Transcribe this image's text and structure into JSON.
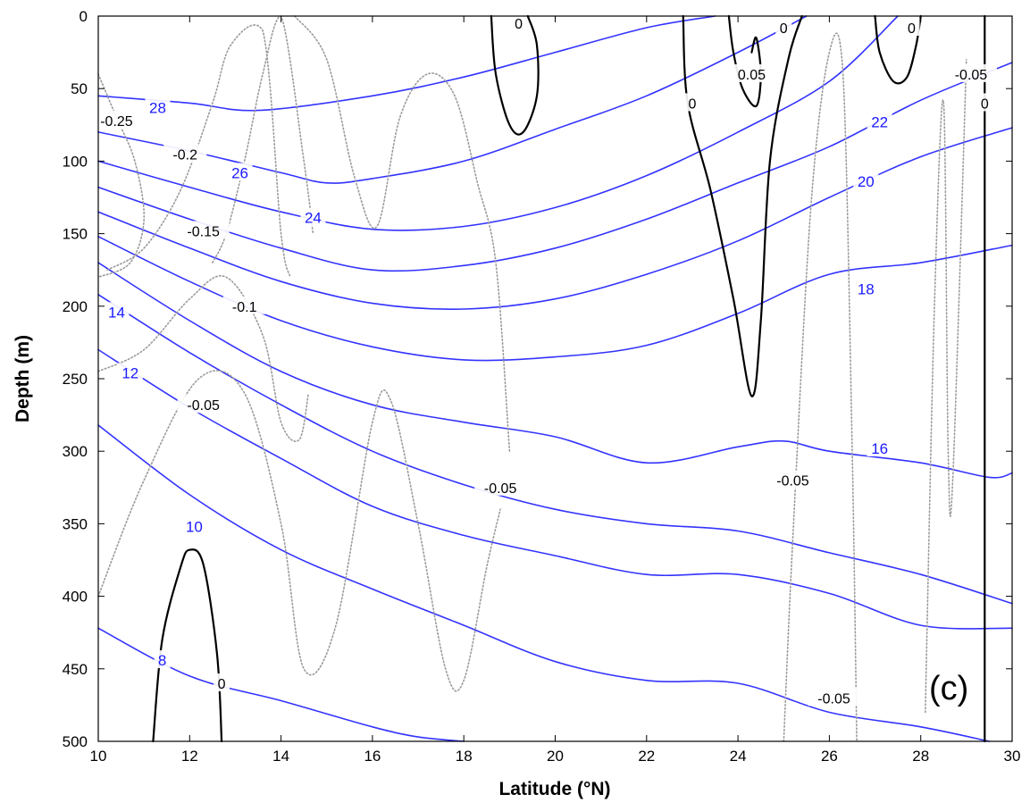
{
  "chart_data": {
    "type": "line",
    "subtype": "contour-section",
    "panel_label": "(c)",
    "xlabel": "Latitude (°N)",
    "ylabel": "Depth (m)",
    "xlim": [
      10,
      30
    ],
    "ylim": [
      500,
      0
    ],
    "y_inverted": true,
    "x_ticks": [
      10,
      12,
      14,
      16,
      18,
      20,
      22,
      24,
      26,
      28,
      30
    ],
    "y_ticks": [
      0,
      50,
      100,
      150,
      200,
      250,
      300,
      350,
      400,
      450,
      500
    ],
    "grid": false,
    "colors": {
      "temperature": "#3333ff",
      "zero_contour": "#000000",
      "negative_contour": "#9a9a9a"
    },
    "series": [
      {
        "name": "28",
        "group": "temperature",
        "x": [
          10,
          12,
          13.5,
          16,
          18,
          20,
          22,
          23.5
        ],
        "y": [
          55,
          60,
          65,
          55,
          42,
          25,
          8,
          0
        ]
      },
      {
        "name": "26",
        "group": "temperature",
        "x": [
          10,
          12,
          14,
          15,
          16,
          18,
          20,
          22,
          24,
          25.5
        ],
        "y": [
          80,
          93,
          108,
          115,
          112,
          100,
          78,
          55,
          25,
          0
        ]
      },
      {
        "name": "24",
        "group": "temperature",
        "x": [
          10,
          12,
          14,
          16,
          18,
          20,
          22,
          24,
          26,
          27.5
        ],
        "y": [
          100,
          118,
          135,
          147,
          145,
          132,
          110,
          80,
          45,
          0
        ]
      },
      {
        "name": "22",
        "group": "temperature",
        "x": [
          10,
          12,
          14,
          16,
          18,
          20,
          22,
          24,
          26,
          28,
          30
        ],
        "y": [
          118,
          140,
          160,
          175,
          172,
          160,
          140,
          115,
          90,
          58,
          32
        ]
      },
      {
        "name": "20",
        "group": "temperature",
        "x": [
          10,
          12,
          14,
          16,
          18,
          20,
          22,
          24,
          26,
          28,
          30
        ],
        "y": [
          135,
          160,
          183,
          198,
          202,
          195,
          178,
          155,
          125,
          97,
          77
        ]
      },
      {
        "name": "18",
        "group": "temperature",
        "x": [
          10,
          12,
          14,
          16,
          18,
          20,
          22,
          24,
          26,
          28,
          30
        ],
        "y": [
          152,
          183,
          210,
          228,
          237,
          235,
          227,
          205,
          178,
          170,
          158
        ]
      },
      {
        "name": "16",
        "group": "temperature",
        "x": [
          10,
          12,
          14,
          16,
          18,
          20,
          22,
          24,
          25,
          26,
          28,
          29.5,
          30
        ],
        "y": [
          170,
          210,
          245,
          268,
          280,
          290,
          308,
          297,
          293,
          300,
          308,
          318,
          315
        ]
      },
      {
        "name": "14",
        "group": "temperature",
        "x": [
          10,
          12,
          14,
          16,
          18,
          20,
          22,
          24,
          26,
          28,
          30
        ],
        "y": [
          192,
          232,
          268,
          300,
          323,
          340,
          350,
          355,
          370,
          385,
          405
        ]
      },
      {
        "name": "12",
        "group": "temperature",
        "x": [
          10,
          12,
          14,
          16,
          18,
          20,
          22,
          24,
          26,
          28,
          30
        ],
        "y": [
          230,
          270,
          305,
          338,
          358,
          372,
          385,
          385,
          398,
          420,
          422
        ]
      },
      {
        "name": "10",
        "group": "temperature",
        "x": [
          10,
          12,
          14,
          16,
          18,
          20,
          22,
          24,
          26,
          28,
          29.5
        ],
        "y": [
          282,
          330,
          368,
          395,
          420,
          445,
          458,
          460,
          480,
          490,
          500
        ]
      },
      {
        "name": "8",
        "group": "temperature",
        "x": [
          10,
          12,
          14,
          16,
          17,
          18
        ],
        "y": [
          422,
          455,
          472,
          490,
          497,
          500
        ]
      },
      {
        "name": "0",
        "group": "zero_contour",
        "x": [
          18.6,
          18.7,
          19.0,
          19.3,
          19.6,
          19.6,
          19.4
        ],
        "y": [
          0,
          40,
          75,
          80,
          55,
          20,
          0
        ]
      },
      {
        "name": "0",
        "group": "zero_contour",
        "x": [
          22.8,
          22.9,
          23.4,
          23.9,
          24.3,
          24.5,
          24.7,
          25.1,
          25.4
        ],
        "y": [
          0,
          60,
          120,
          195,
          262,
          210,
          100,
          30,
          0
        ]
      },
      {
        "name": "0.05",
        "group": "zero_contour",
        "x": [
          23.8,
          23.9,
          24.1,
          24.4,
          24.5,
          24.4,
          24.3
        ],
        "y": [
          0,
          25,
          50,
          62,
          40,
          15,
          25
        ]
      },
      {
        "name": "0",
        "group": "zero_contour",
        "x": [
          27.0,
          27.1,
          27.4,
          27.7,
          27.9,
          28.0
        ],
        "y": [
          0,
          25,
          45,
          42,
          20,
          0
        ]
      },
      {
        "name": "0",
        "group": "zero_contour",
        "x": [
          29.4,
          29.4,
          29.4
        ],
        "y": [
          0,
          250,
          500
        ]
      },
      {
        "name": "0",
        "group": "zero_contour",
        "x": [
          11.2,
          11.4,
          11.8,
          12.0,
          12.3,
          12.6,
          12.7
        ],
        "y": [
          500,
          430,
          380,
          368,
          378,
          440,
          500
        ]
      },
      {
        "name": "-0.25",
        "group": "negative_contour",
        "x": [
          10,
          10.4,
          10.8,
          11.0,
          10.7,
          10.0
        ],
        "y": [
          40,
          70,
          100,
          140,
          170,
          180
        ]
      },
      {
        "name": "-0.2",
        "group": "negative_contour",
        "x": [
          10.2,
          11.0,
          11.8,
          12.5,
          12.9,
          13.6,
          14.0,
          14.2
        ],
        "y": [
          175,
          160,
          120,
          60,
          20,
          10,
          150,
          180
        ]
      },
      {
        "name": "-0.15",
        "group": "negative_contour",
        "x": [
          12.5,
          12.8,
          13.2,
          13.6,
          14.0,
          14.5,
          14.7
        ],
        "y": [
          170,
          150,
          100,
          40,
          0,
          100,
          150
        ]
      },
      {
        "name": "-0.1",
        "group": "negative_contour",
        "x": [
          10,
          11.0,
          12.0,
          12.8,
          13.6,
          14.0,
          14.4,
          14.6
        ],
        "y": [
          245,
          230,
          195,
          180,
          220,
          280,
          292,
          260
        ]
      },
      {
        "name": "-0.05",
        "group": "negative_contour",
        "x": [
          10,
          11.0,
          12.2,
          13.2,
          14.0,
          14.5,
          15.2,
          16.0,
          16.4,
          17.0,
          17.6,
          18.0,
          18.5,
          18.8
        ],
        "y": [
          400,
          320,
          250,
          260,
          350,
          450,
          420,
          280,
          265,
          350,
          450,
          458,
          380,
          340
        ]
      },
      {
        "name": "-0.05",
        "group": "negative_contour",
        "x": [
          14.3,
          15.0,
          15.6,
          16.1,
          16.6,
          17.2,
          17.8,
          18.3,
          18.7,
          19.0
        ],
        "y": [
          0,
          30,
          110,
          145,
          70,
          40,
          55,
          115,
          170,
          300
        ]
      },
      {
        "name": "-0.05",
        "group": "negative_contour",
        "x": [
          25.0,
          25.2,
          25.6,
          26.0,
          26.3,
          26.5,
          26.6
        ],
        "y": [
          500,
          360,
          130,
          25,
          40,
          300,
          500
        ]
      },
      {
        "name": "-0.05",
        "group": "negative_contour",
        "x": [
          28.1,
          28.3,
          28.5,
          28.6,
          28.7,
          29.0
        ],
        "y": [
          480,
          200,
          60,
          300,
          320,
          30
        ]
      }
    ],
    "annotations": [
      {
        "text": "28",
        "x": 11.3,
        "y": 63,
        "group": "temperature"
      },
      {
        "text": "26",
        "x": 13.1,
        "y": 108,
        "group": "temperature"
      },
      {
        "text": "24",
        "x": 14.7,
        "y": 139,
        "group": "temperature"
      },
      {
        "text": "22",
        "x": 27.1,
        "y": 73,
        "group": "temperature"
      },
      {
        "text": "20",
        "x": 26.8,
        "y": 114,
        "group": "temperature"
      },
      {
        "text": "18",
        "x": 26.8,
        "y": 188,
        "group": "temperature"
      },
      {
        "text": "16",
        "x": 27.1,
        "y": 298,
        "group": "temperature"
      },
      {
        "text": "14",
        "x": 10.4,
        "y": 204,
        "group": "temperature"
      },
      {
        "text": "12",
        "x": 10.7,
        "y": 246,
        "group": "temperature"
      },
      {
        "text": "10",
        "x": 12.1,
        "y": 352,
        "group": "temperature"
      },
      {
        "text": "8",
        "x": 11.4,
        "y": 444,
        "group": "temperature"
      },
      {
        "text": "0",
        "x": 19.2,
        "y": 5,
        "group": "zero_contour"
      },
      {
        "text": "0",
        "x": 23.0,
        "y": 60,
        "group": "zero_contour"
      },
      {
        "text": "0.05",
        "x": 24.3,
        "y": 40,
        "group": "zero_contour"
      },
      {
        "text": "0",
        "x": 25.0,
        "y": 8,
        "group": "zero_contour"
      },
      {
        "text": "0",
        "x": 27.8,
        "y": 8,
        "group": "zero_contour"
      },
      {
        "text": "0",
        "x": 29.4,
        "y": 60,
        "group": "zero_contour"
      },
      {
        "text": "0",
        "x": 12.7,
        "y": 460,
        "group": "zero_contour"
      },
      {
        "text": "-0.25",
        "x": 10.4,
        "y": 72,
        "group": "negative_contour"
      },
      {
        "text": "-0.2",
        "x": 11.9,
        "y": 95,
        "group": "negative_contour"
      },
      {
        "text": "-0.15",
        "x": 12.3,
        "y": 148,
        "group": "negative_contour"
      },
      {
        "text": "-0.1",
        "x": 13.2,
        "y": 200,
        "group": "negative_contour"
      },
      {
        "text": "-0.05",
        "x": 12.3,
        "y": 268,
        "group": "negative_contour"
      },
      {
        "text": "-0.05",
        "x": 18.8,
        "y": 325,
        "group": "negative_contour"
      },
      {
        "text": "-0.05",
        "x": 25.2,
        "y": 320,
        "group": "negative_contour"
      },
      {
        "text": "-0.05",
        "x": 26.1,
        "y": 470,
        "group": "negative_contour"
      },
      {
        "text": "-0.05",
        "x": 29.1,
        "y": 40,
        "group": "negative_contour"
      }
    ]
  }
}
